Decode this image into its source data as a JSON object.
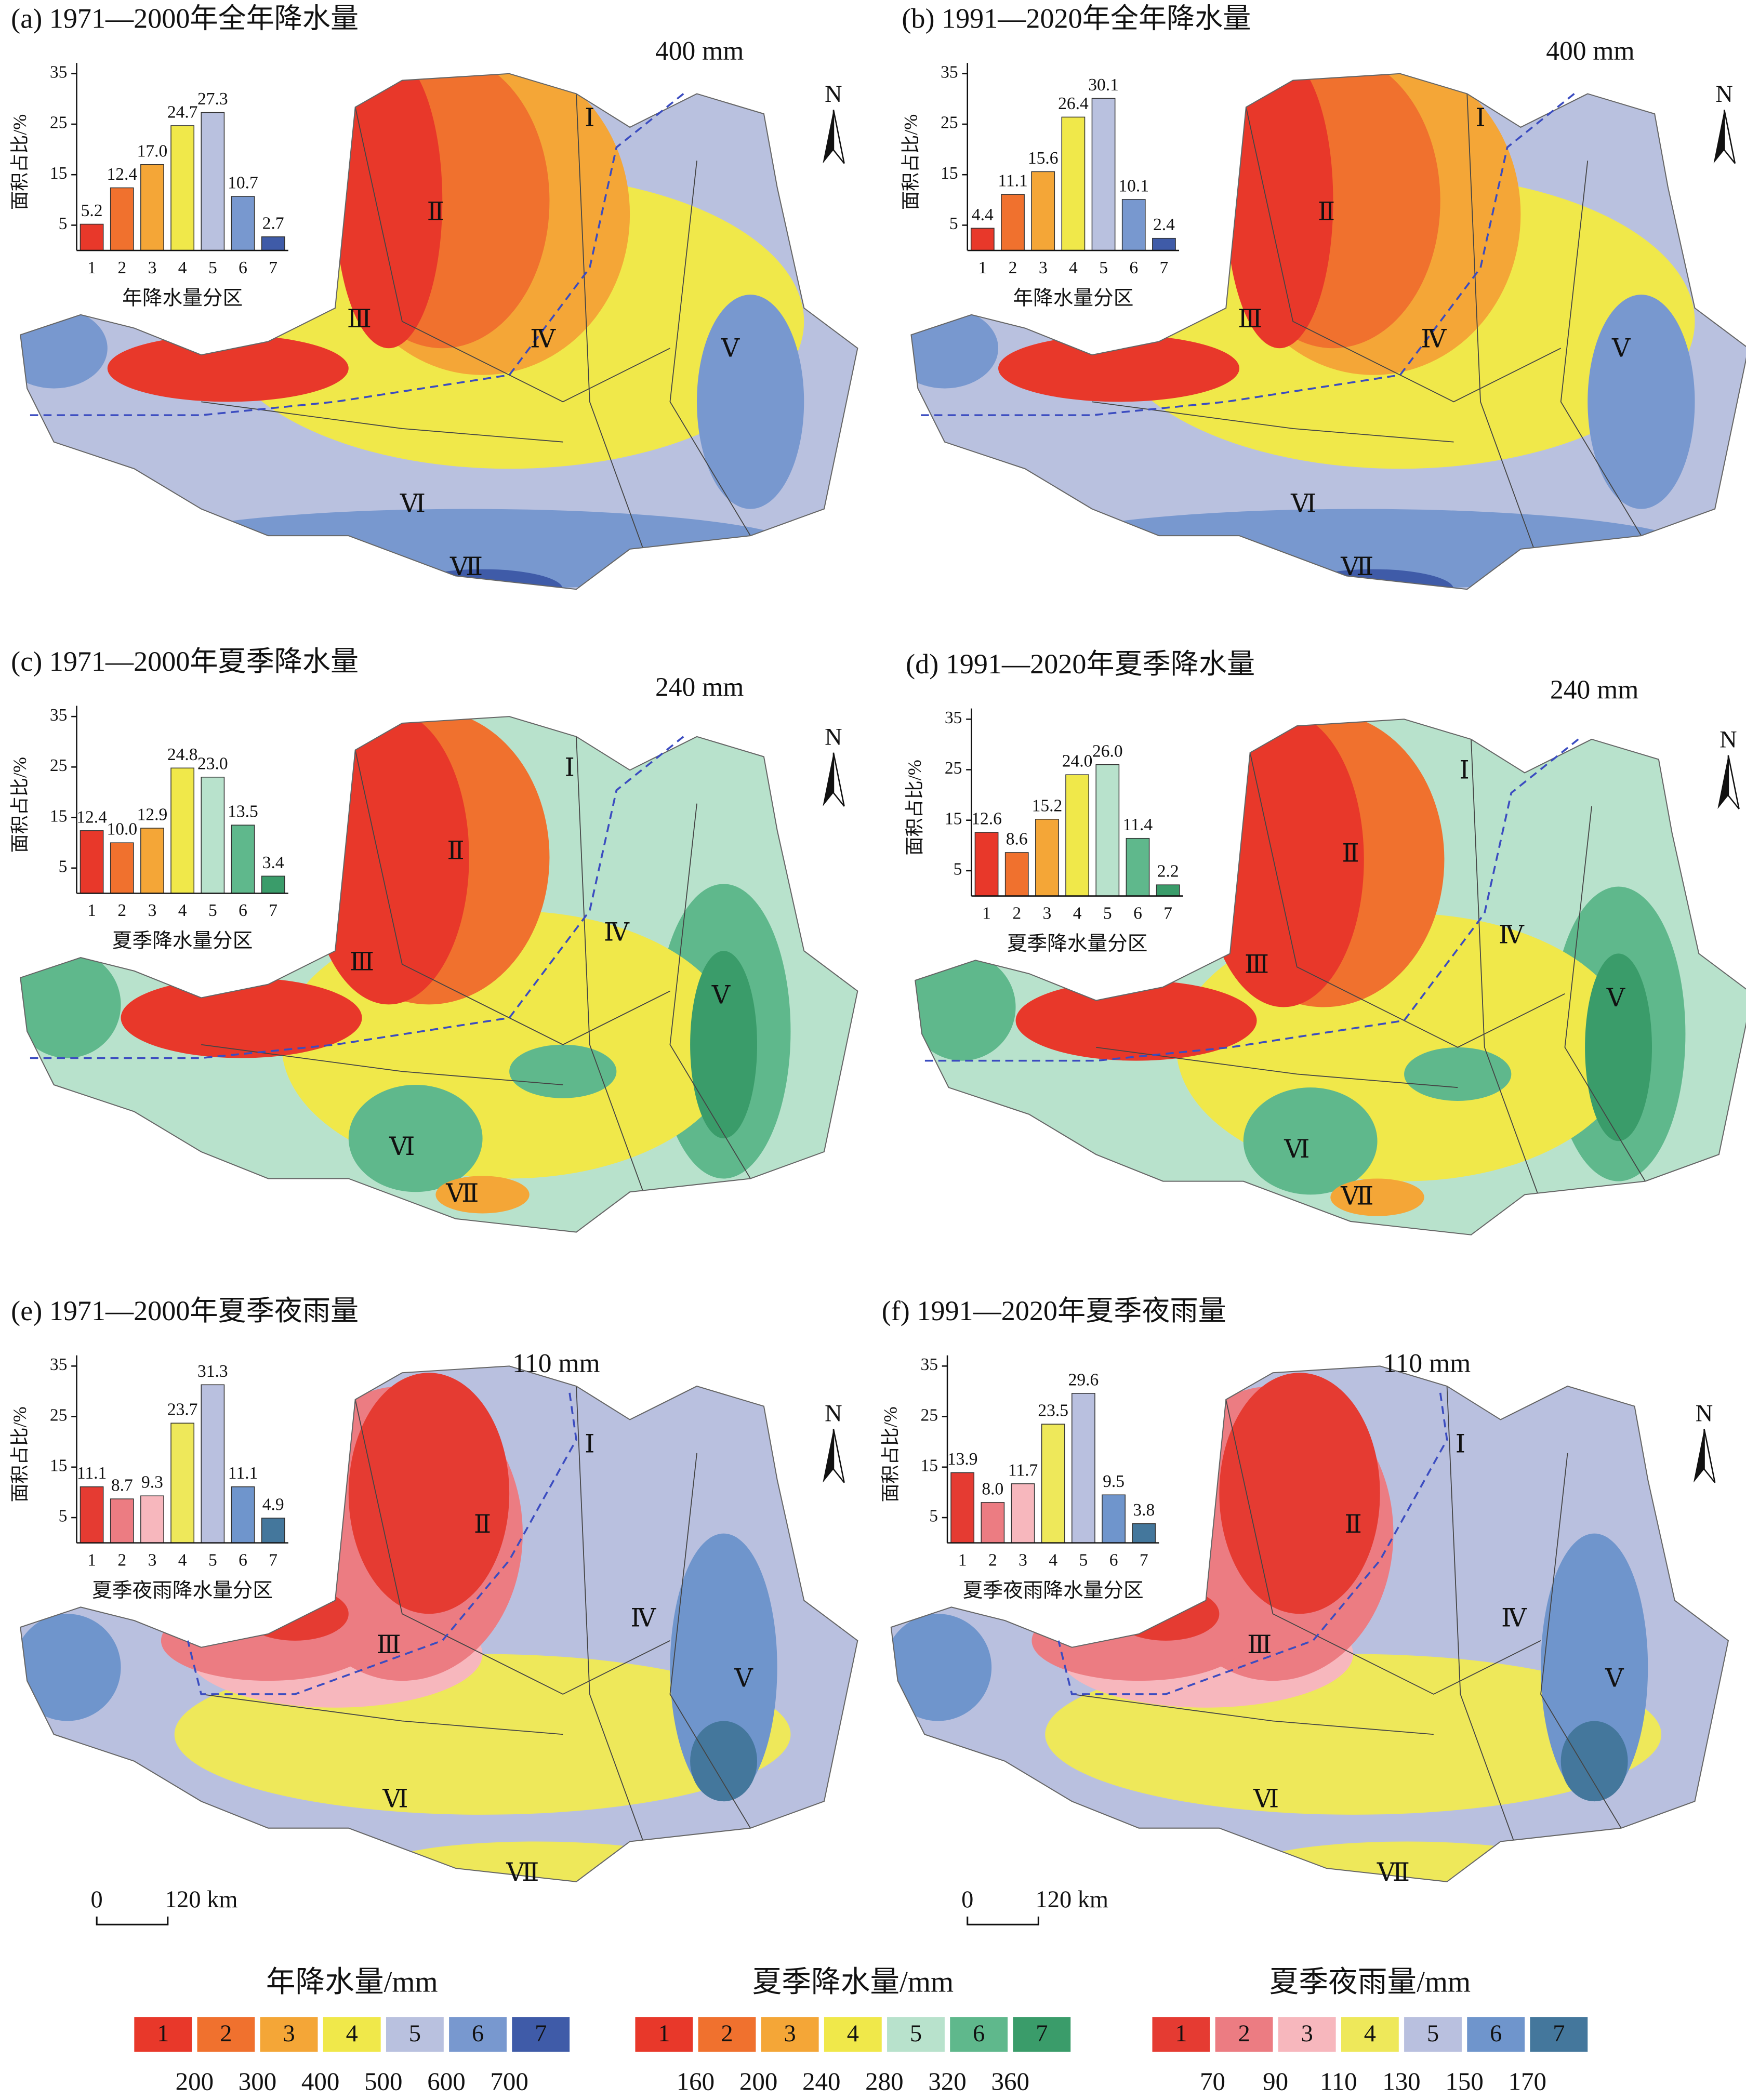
{
  "chart_data": [
    {
      "type": "bar",
      "title": "(a) 1971—2000年全年降水量",
      "ylabel": "面积占比/%",
      "xlabel": "年降水量分区",
      "categories": [
        "1",
        "2",
        "3",
        "4",
        "5",
        "6",
        "7"
      ],
      "values": [
        5.2,
        12.4,
        17.0,
        24.7,
        27.3,
        10.7,
        2.7
      ],
      "value_labels": [
        "5.2",
        "12.4",
        "17.0",
        "24.7",
        "27.3",
        "10.7",
        "2.7"
      ],
      "colors": [
        "#e8382a",
        "#f0712e",
        "#f4a637",
        "#f0e84a",
        "#b9c1df",
        "#7898cf",
        "#3f5ba8"
      ],
      "ylim": [
        0,
        35
      ],
      "yticks": [
        5,
        15,
        25,
        35
      ]
    },
    {
      "type": "bar",
      "title": "(b) 1991—2020年全年降水量",
      "ylabel": "面积占比/%",
      "xlabel": "年降水量分区",
      "categories": [
        "1",
        "2",
        "3",
        "4",
        "5",
        "6",
        "7"
      ],
      "values": [
        4.4,
        11.1,
        15.6,
        26.4,
        30.1,
        10.1,
        2.4
      ],
      "value_labels": [
        "4.4",
        "11.1",
        "15.6",
        "26.4",
        "30.1",
        "10.1",
        "2.4"
      ],
      "colors": [
        "#e8382a",
        "#f0712e",
        "#f4a637",
        "#f0e84a",
        "#b9c1df",
        "#7898cf",
        "#3f5ba8"
      ],
      "ylim": [
        0,
        35
      ],
      "yticks": [
        5,
        15,
        25,
        35
      ]
    },
    {
      "type": "bar",
      "title": "(c) 1971—2000年夏季降水量",
      "ylabel": "面积占比/%",
      "xlabel": "夏季降水量分区",
      "categories": [
        "1",
        "2",
        "3",
        "4",
        "5",
        "6",
        "7"
      ],
      "values": [
        12.4,
        10.0,
        12.9,
        24.8,
        23.0,
        13.5,
        3.4
      ],
      "value_labels": [
        "12.4",
        "10.0",
        "12.9",
        "24.8",
        "23.0",
        "13.5",
        "3.4"
      ],
      "colors": [
        "#e8382a",
        "#f0712e",
        "#f4a637",
        "#f0e84a",
        "#b8e2cc",
        "#5fb88c",
        "#3a9c6a"
      ],
      "ylim": [
        0,
        35
      ],
      "yticks": [
        5,
        15,
        25,
        35
      ]
    },
    {
      "type": "bar",
      "title": "(d) 1991—2020年夏季降水量",
      "ylabel": "面积占比/%",
      "xlabel": "夏季降水量分区",
      "categories": [
        "1",
        "2",
        "3",
        "4",
        "5",
        "6",
        "7"
      ],
      "values": [
        12.6,
        8.6,
        15.2,
        24.0,
        26.0,
        11.4,
        2.2
      ],
      "value_labels": [
        "12.6",
        "8.6",
        "15.2",
        "24.0",
        "26.0",
        "11.4",
        "2.2"
      ],
      "colors": [
        "#e8382a",
        "#f0712e",
        "#f4a637",
        "#f0e84a",
        "#b8e2cc",
        "#5fb88c",
        "#3a9c6a"
      ],
      "ylim": [
        0,
        35
      ],
      "yticks": [
        5,
        15,
        25,
        35
      ]
    },
    {
      "type": "bar",
      "title": "(e) 1971—2000年夏季夜雨量",
      "ylabel": "面积占比/%",
      "xlabel": "夏季夜雨降水量分区",
      "categories": [
        "1",
        "2",
        "3",
        "4",
        "5",
        "6",
        "7"
      ],
      "values": [
        11.1,
        8.7,
        9.3,
        23.7,
        31.3,
        11.1,
        4.9
      ],
      "value_labels": [
        "11.1",
        "8.7",
        "9.3",
        "23.7",
        "31.3",
        "11.1",
        "4.9"
      ],
      "colors": [
        "#e53b32",
        "#ec7c82",
        "#f7b7bd",
        "#eee85a",
        "#b9c0df",
        "#6f95cc",
        "#44779c"
      ],
      "ylim": [
        0,
        35
      ],
      "yticks": [
        5,
        15,
        25,
        35
      ]
    },
    {
      "type": "bar",
      "title": "(f) 1991—2020年夏季夜雨量",
      "ylabel": "面积占比/%",
      "xlabel": "夏季夜雨降水量分区",
      "categories": [
        "1",
        "2",
        "3",
        "4",
        "5",
        "6",
        "7"
      ],
      "values": [
        13.9,
        8.0,
        11.7,
        23.5,
        29.6,
        9.5,
        3.8
      ],
      "value_labels": [
        "13.9",
        "8.0",
        "11.7",
        "23.5",
        "29.6",
        "9.5",
        "3.8"
      ],
      "colors": [
        "#e53b32",
        "#ec7c82",
        "#f7b7bd",
        "#eee85a",
        "#b9c0df",
        "#6f95cc",
        "#44779c"
      ],
      "ylim": [
        0,
        35
      ],
      "yticks": [
        5,
        15,
        25,
        35
      ]
    }
  ],
  "maps": [
    {
      "contour_label": "400 mm",
      "north": "N",
      "regions": [
        "Ⅰ",
        "Ⅱ",
        "Ⅲ",
        "Ⅳ",
        "Ⅴ",
        "Ⅵ",
        "Ⅶ"
      ]
    },
    {
      "contour_label": "400 mm",
      "north": "N",
      "regions": [
        "Ⅰ",
        "Ⅱ",
        "Ⅲ",
        "Ⅳ",
        "Ⅴ",
        "Ⅵ",
        "Ⅶ"
      ]
    },
    {
      "contour_label": "240 mm",
      "north": "N",
      "regions": [
        "Ⅰ",
        "Ⅱ",
        "Ⅲ",
        "Ⅳ",
        "Ⅴ",
        "Ⅵ",
        "Ⅶ"
      ]
    },
    {
      "contour_label": "240 mm",
      "north": "N",
      "regions": [
        "Ⅰ",
        "Ⅱ",
        "Ⅲ",
        "Ⅳ",
        "Ⅴ",
        "Ⅵ",
        "Ⅶ"
      ]
    },
    {
      "contour_label": "110 mm",
      "north": "N",
      "regions": [
        "Ⅰ",
        "Ⅱ",
        "Ⅲ",
        "Ⅳ",
        "Ⅴ",
        "Ⅵ",
        "Ⅶ"
      ],
      "scale": [
        "0",
        "120 km"
      ]
    },
    {
      "contour_label": "110 mm",
      "north": "N",
      "regions": [
        "Ⅰ",
        "Ⅱ",
        "Ⅲ",
        "Ⅳ",
        "Ⅴ",
        "Ⅵ",
        "Ⅶ"
      ],
      "scale": [
        "0",
        "120 km"
      ]
    }
  ],
  "legends": [
    {
      "title": "年降水量/mm",
      "labels": [
        "1",
        "2",
        "3",
        "4",
        "5",
        "6",
        "7"
      ],
      "colors": [
        "#e8382a",
        "#f0712e",
        "#f4a637",
        "#f0e84a",
        "#b9c1df",
        "#7898cf",
        "#3f5ba8"
      ],
      "breaks": [
        200,
        300,
        400,
        500,
        600,
        700
      ]
    },
    {
      "title": "夏季降水量/mm",
      "labels": [
        "1",
        "2",
        "3",
        "4",
        "5",
        "6",
        "7"
      ],
      "colors": [
        "#e8382a",
        "#f0712e",
        "#f4a637",
        "#f0e84a",
        "#b8e2cc",
        "#5fb88c",
        "#3a9c6a"
      ],
      "breaks": [
        160,
        200,
        240,
        280,
        320,
        360
      ]
    },
    {
      "title": "夏季夜雨量/mm",
      "labels": [
        "1",
        "2",
        "3",
        "4",
        "5",
        "6",
        "7"
      ],
      "colors": [
        "#e53b32",
        "#ec7c82",
        "#f7b7bd",
        "#eee85a",
        "#b9c0df",
        "#6f95cc",
        "#44779c"
      ],
      "breaks": [
        70,
        90,
        110,
        130,
        150,
        170
      ]
    }
  ]
}
